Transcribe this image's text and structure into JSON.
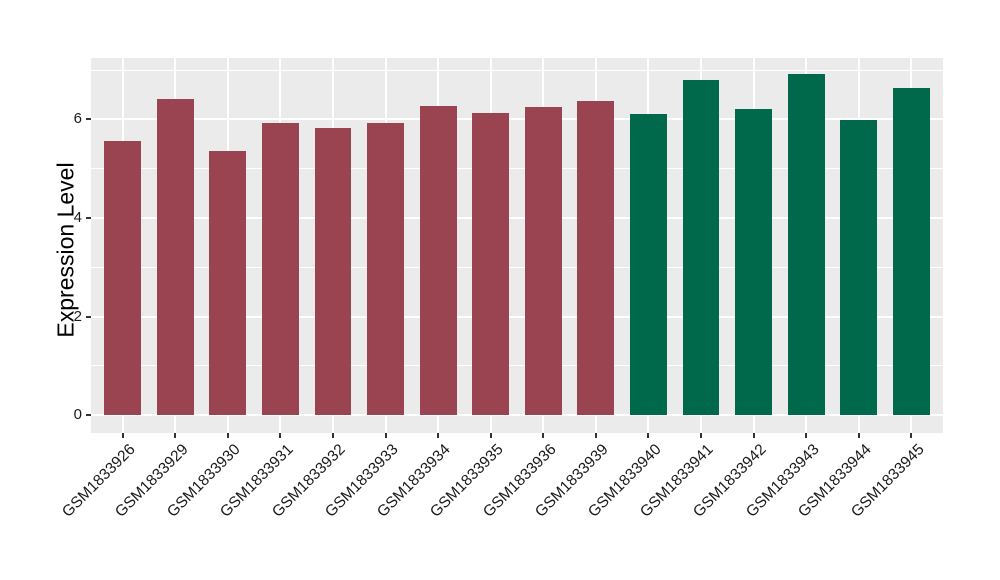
{
  "chart_data": {
    "type": "bar",
    "title": "",
    "xlabel": "",
    "ylabel": "Expression Level",
    "categories": [
      "GSM1833926",
      "GSM1833929",
      "GSM1833930",
      "GSM1833931",
      "GSM1833932",
      "GSM1833933",
      "GSM1833934",
      "GSM1833935",
      "GSM1833936",
      "GSM1833939",
      "GSM1833940",
      "GSM1833941",
      "GSM1833942",
      "GSM1833943",
      "GSM1833944",
      "GSM1833945"
    ],
    "values": [
      5.56,
      6.41,
      5.35,
      5.93,
      5.82,
      5.92,
      6.28,
      6.13,
      6.26,
      6.37,
      6.11,
      6.8,
      6.22,
      6.93,
      5.98,
      6.64
    ],
    "bar_groups": [
      0,
      0,
      0,
      0,
      0,
      0,
      0,
      0,
      0,
      0,
      1,
      1,
      1,
      1,
      1,
      1
    ],
    "group_colors": [
      "#9A4452",
      "#00684B"
    ],
    "yticks": [
      0,
      2,
      4,
      6
    ],
    "yticks_minor": [
      1,
      3,
      5,
      7
    ],
    "ylim": [
      0,
      7.245
    ],
    "panel_ylim": [
      -0.3624,
      7.245
    ],
    "grid": true,
    "legend": "none",
    "panel_bg": "#EBEBEB",
    "grid_color": "#FFFFFF",
    "tick_color": "#333333"
  }
}
